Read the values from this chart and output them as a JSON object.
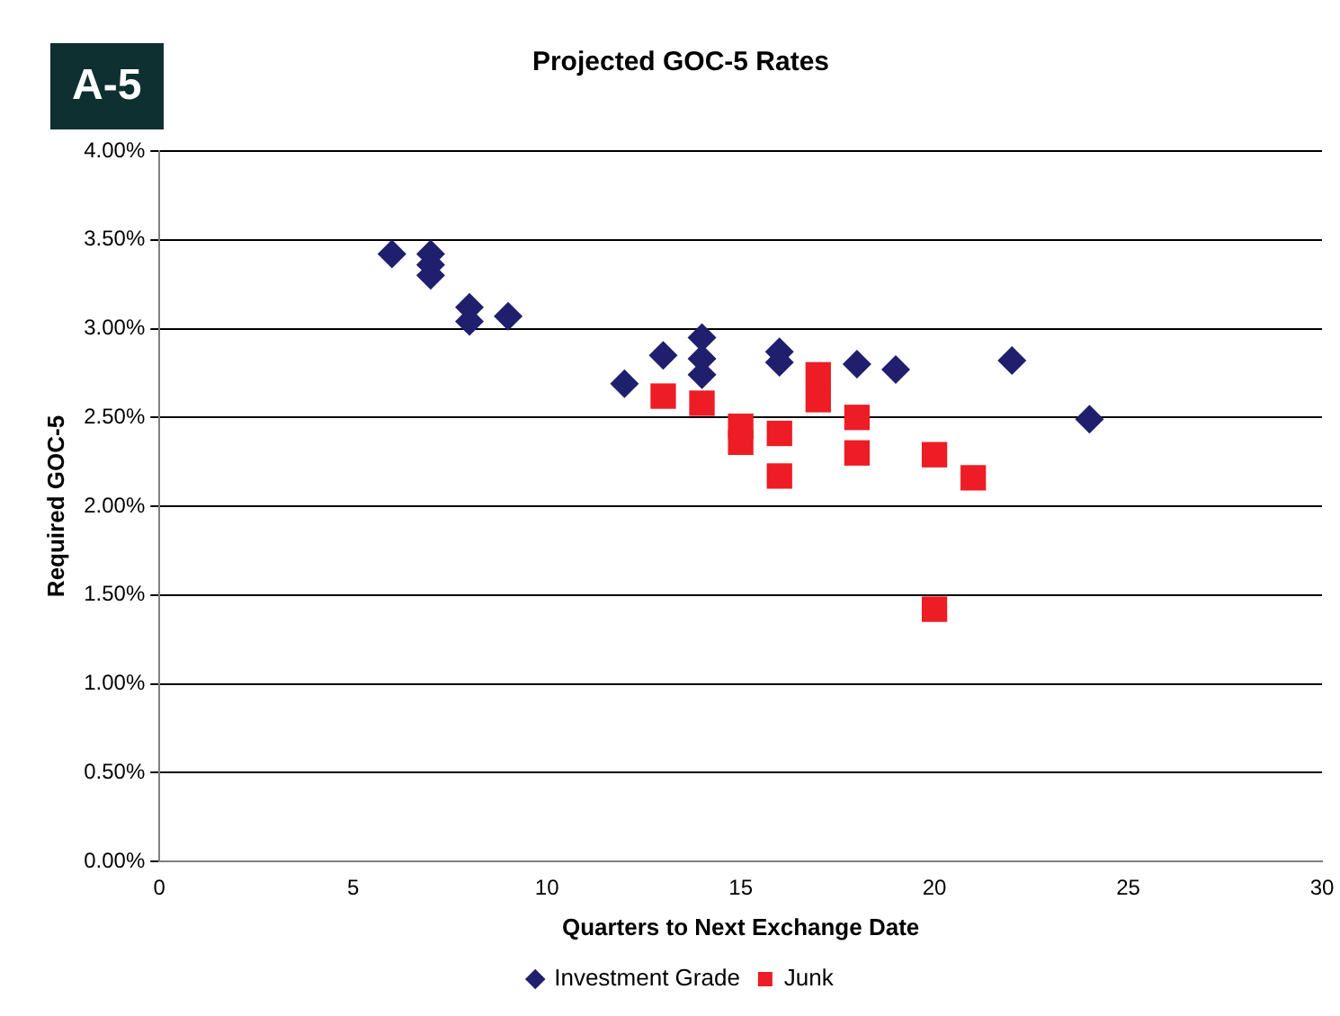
{
  "chart_data": {
    "type": "scatter",
    "title": "Projected GOC-5 Rates",
    "xlabel": "Quarters to Next Exchange Date",
    "ylabel": "Required GOC-5",
    "annotations": [
      "A-5"
    ],
    "xlim": [
      0,
      30
    ],
    "xticks": [
      0,
      5,
      10,
      15,
      20,
      25,
      30
    ],
    "ylim": [
      0,
      4
    ],
    "yticks": [
      {
        "value": 0,
        "label": "0.00%"
      },
      {
        "value": 0.5,
        "label": "0.50%"
      },
      {
        "value": 1,
        "label": "1.00%"
      },
      {
        "value": 1.5,
        "label": "1.50%"
      },
      {
        "value": 2,
        "label": "2.00%"
      },
      {
        "value": 2.5,
        "label": "2.50%"
      },
      {
        "value": 3,
        "label": "3.00%"
      },
      {
        "value": 3.5,
        "label": "3.50%"
      },
      {
        "value": 4,
        "label": "4.00%"
      }
    ],
    "grid": "y",
    "legend": "bottom",
    "series": [
      {
        "name": "Investment Grade",
        "color": "#1f1f6e",
        "marker": "diamond",
        "x": [
          6,
          7,
          7,
          7,
          8,
          8,
          9,
          12,
          13,
          14,
          14,
          14,
          16,
          16,
          18,
          19,
          22,
          24
        ],
        "values": [
          3.42,
          3.42,
          3.36,
          3.3,
          3.12,
          3.04,
          3.07,
          2.69,
          2.85,
          2.95,
          2.83,
          2.74,
          2.87,
          2.81,
          2.8,
          2.77,
          2.82,
          2.49
        ]
      },
      {
        "name": "Junk",
        "color": "#ee1c24",
        "marker": "square",
        "x": [
          13,
          14,
          15,
          15,
          16,
          16,
          17,
          17,
          18,
          18,
          20,
          21,
          20
        ],
        "values": [
          2.62,
          2.58,
          2.45,
          2.36,
          2.41,
          2.17,
          2.74,
          2.6,
          2.5,
          2.3,
          2.29,
          2.16,
          1.42
        ]
      }
    ]
  }
}
